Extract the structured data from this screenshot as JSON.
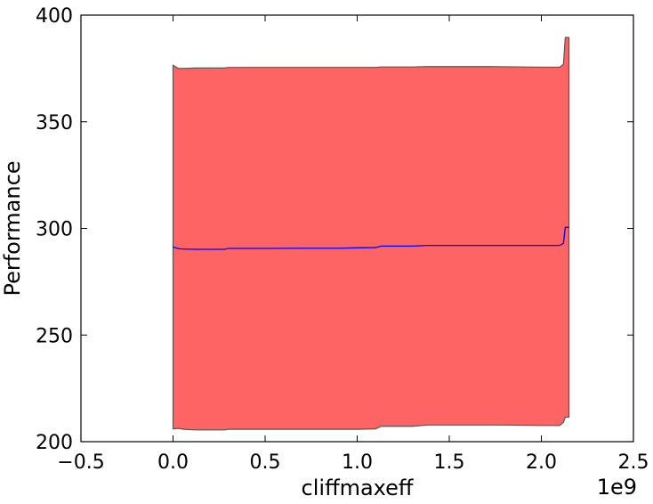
{
  "chart_data": {
    "type": "area",
    "title": "",
    "xlabel": "cliffmaxeff",
    "ylabel": "Performance",
    "x_offset_label": "1e9",
    "xlim": [
      -0.5,
      2.5
    ],
    "ylim": [
      200,
      400
    ],
    "x_ticks": [
      -0.5,
      0.0,
      0.5,
      1.0,
      1.5,
      2.0,
      2.5
    ],
    "x_tick_labels": [
      "−0.5",
      "0.0",
      "0.5",
      "1.0",
      "1.5",
      "2.0",
      "2.5"
    ],
    "y_ticks": [
      200,
      250,
      300,
      350,
      400
    ],
    "y_tick_labels": [
      "200",
      "250",
      "300",
      "350",
      "400"
    ],
    "grid": false,
    "x": [
      0.0,
      0.03,
      0.06,
      0.12,
      0.2,
      0.28,
      0.3,
      0.5,
      0.7,
      0.9,
      1.0,
      1.1,
      1.13,
      1.3,
      1.38,
      1.5,
      1.7,
      1.8,
      2.0,
      2.1,
      2.12,
      2.13,
      2.15
    ],
    "series": [
      {
        "type": "band",
        "color": "#ff6464",
        "edge_color": "#555555",
        "upper": [
          376.5,
          375.0,
          375.0,
          375.2,
          375.2,
          375.2,
          375.5,
          375.5,
          375.5,
          375.5,
          375.5,
          375.5,
          375.7,
          375.7,
          375.9,
          375.9,
          375.9,
          375.8,
          375.6,
          375.6,
          377.0,
          389.5,
          389.5
        ],
        "lower": [
          206.0,
          206.2,
          205.8,
          205.5,
          205.5,
          205.5,
          205.8,
          205.8,
          205.8,
          205.8,
          205.8,
          206.0,
          207.2,
          207.2,
          207.8,
          207.8,
          207.8,
          207.8,
          207.6,
          207.6,
          209.0,
          211.5,
          211.5
        ]
      },
      {
        "type": "line",
        "color": "#0000ff",
        "values": [
          291.3,
          290.5,
          290.3,
          290.2,
          290.2,
          290.2,
          290.6,
          290.6,
          290.7,
          290.7,
          290.9,
          291.0,
          291.7,
          291.7,
          292.0,
          292.0,
          292.0,
          292.0,
          292.0,
          292.0,
          293.0,
          300.5,
          300.5
        ]
      }
    ]
  }
}
